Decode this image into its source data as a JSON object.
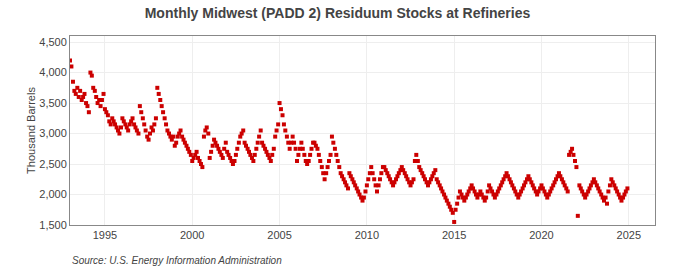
{
  "chart_data": {
    "type": "scatter",
    "title": "Monthly Midwest (PADD 2) Residuum Stocks at Refineries",
    "ylabel": "Thousand Barrels",
    "annotations": [
      "Source: U.S. Energy Information Administration"
    ],
    "color": "#cc0000",
    "marker": "square",
    "grid": true,
    "xlim": [
      1993.0,
      2026.5
    ],
    "xticks": [
      1995,
      2000,
      2005,
      2010,
      2015,
      2020,
      2025
    ],
    "ylim": [
      1500,
      4600
    ],
    "yticks": [
      {
        "value": 1500,
        "label": "1,500"
      },
      {
        "value": 2000,
        "label": "2,000"
      },
      {
        "value": 2500,
        "label": "2,500"
      },
      {
        "value": 3000,
        "label": "3,000"
      },
      {
        "value": 3500,
        "label": "3,500"
      },
      {
        "value": 4000,
        "label": "4,000"
      },
      {
        "value": 4500,
        "label": "4,500"
      }
    ],
    "x": [
      1993.0,
      1993.08,
      1993.17,
      1993.25,
      1993.33,
      1993.42,
      1993.5,
      1993.58,
      1993.67,
      1993.75,
      1993.83,
      1993.92,
      1994.0,
      1994.08,
      1994.17,
      1994.25,
      1994.33,
      1994.42,
      1994.5,
      1994.58,
      1994.67,
      1994.75,
      1994.83,
      1994.92,
      1995.0,
      1995.08,
      1995.17,
      1995.25,
      1995.33,
      1995.42,
      1995.5,
      1995.58,
      1995.67,
      1995.75,
      1995.83,
      1995.92,
      1996.0,
      1996.08,
      1996.17,
      1996.25,
      1996.33,
      1996.42,
      1996.5,
      1996.58,
      1996.67,
      1996.75,
      1996.83,
      1996.92,
      1997.0,
      1997.08,
      1997.17,
      1997.25,
      1997.33,
      1997.42,
      1997.5,
      1997.58,
      1997.67,
      1997.75,
      1997.83,
      1997.92,
      1998.0,
      1998.08,
      1998.17,
      1998.25,
      1998.33,
      1998.42,
      1998.5,
      1998.58,
      1998.67,
      1998.75,
      1998.83,
      1998.92,
      1999.0,
      1999.08,
      1999.17,
      1999.25,
      1999.33,
      1999.42,
      1999.5,
      1999.58,
      1999.67,
      1999.75,
      1999.83,
      1999.92,
      2000.0,
      2000.08,
      2000.17,
      2000.25,
      2000.33,
      2000.42,
      2000.5,
      2000.58,
      2000.67,
      2000.75,
      2000.83,
      2000.92,
      2001.0,
      2001.08,
      2001.17,
      2001.25,
      2001.33,
      2001.42,
      2001.5,
      2001.58,
      2001.67,
      2001.75,
      2001.83,
      2001.92,
      2002.0,
      2002.08,
      2002.17,
      2002.25,
      2002.33,
      2002.42,
      2002.5,
      2002.58,
      2002.67,
      2002.75,
      2002.83,
      2002.92,
      2003.0,
      2003.08,
      2003.17,
      2003.25,
      2003.33,
      2003.42,
      2003.5,
      2003.58,
      2003.67,
      2003.75,
      2003.83,
      2003.92,
      2004.0,
      2004.08,
      2004.17,
      2004.25,
      2004.33,
      2004.42,
      2004.5,
      2004.58,
      2004.67,
      2004.75,
      2004.83,
      2004.92,
      2005.0,
      2005.08,
      2005.17,
      2005.25,
      2005.33,
      2005.42,
      2005.5,
      2005.58,
      2005.67,
      2005.75,
      2005.83,
      2005.92,
      2006.0,
      2006.08,
      2006.17,
      2006.25,
      2006.33,
      2006.42,
      2006.5,
      2006.58,
      2006.67,
      2006.75,
      2006.83,
      2006.92,
      2007.0,
      2007.08,
      2007.17,
      2007.25,
      2007.33,
      2007.42,
      2007.5,
      2007.58,
      2007.67,
      2007.75,
      2007.83,
      2007.92,
      2008.0,
      2008.08,
      2008.17,
      2008.25,
      2008.33,
      2008.42,
      2008.5,
      2008.58,
      2008.67,
      2008.75,
      2008.83,
      2008.92,
      2009.0,
      2009.08,
      2009.17,
      2009.25,
      2009.33,
      2009.42,
      2009.5,
      2009.58,
      2009.67,
      2009.75,
      2009.83,
      2009.92,
      2010.0,
      2010.08,
      2010.17,
      2010.25,
      2010.33,
      2010.42,
      2010.5,
      2010.58,
      2010.67,
      2010.75,
      2010.83,
      2010.92,
      2011.0,
      2011.08,
      2011.17,
      2011.25,
      2011.33,
      2011.42,
      2011.5,
      2011.58,
      2011.67,
      2011.75,
      2011.83,
      2011.92,
      2012.0,
      2012.08,
      2012.17,
      2012.25,
      2012.33,
      2012.42,
      2012.5,
      2012.58,
      2012.67,
      2012.75,
      2012.83,
      2012.92,
      2013.0,
      2013.08,
      2013.17,
      2013.25,
      2013.33,
      2013.42,
      2013.5,
      2013.58,
      2013.67,
      2013.75,
      2013.83,
      2013.92,
      2014.0,
      2014.08,
      2014.17,
      2014.25,
      2014.33,
      2014.42,
      2014.5,
      2014.58,
      2014.67,
      2014.75,
      2014.83,
      2014.92,
      2015.0,
      2015.08,
      2015.17,
      2015.25,
      2015.33,
      2015.42,
      2015.5,
      2015.58,
      2015.67,
      2015.75,
      2015.83,
      2015.92,
      2016.0,
      2016.08,
      2016.17,
      2016.25,
      2016.33,
      2016.42,
      2016.5,
      2016.58,
      2016.67,
      2016.75,
      2016.83,
      2016.92,
      2017.0,
      2017.08,
      2017.17,
      2017.25,
      2017.33,
      2017.42,
      2017.5,
      2017.58,
      2017.67,
      2017.75,
      2017.83,
      2017.92,
      2018.0,
      2018.08,
      2018.17,
      2018.25,
      2018.33,
      2018.42,
      2018.5,
      2018.58,
      2018.67,
      2018.75,
      2018.83,
      2018.92,
      2019.0,
      2019.08,
      2019.17,
      2019.25,
      2019.33,
      2019.42,
      2019.5,
      2019.58,
      2019.67,
      2019.75,
      2019.83,
      2019.92,
      2020.0,
      2020.08,
      2020.17,
      2020.25,
      2020.33,
      2020.42,
      2020.5,
      2020.58,
      2020.67,
      2020.75,
      2020.83,
      2020.92,
      2021.0,
      2021.08,
      2021.17,
      2021.25,
      2021.33,
      2021.42,
      2021.5,
      2021.58,
      2021.67,
      2021.75,
      2021.83,
      2021.92,
      2022.0,
      2022.08,
      2022.17,
      2022.25,
      2022.33,
      2022.42,
      2022.5,
      2022.58,
      2022.67,
      2022.75,
      2022.83,
      2022.92,
      2023.0,
      2023.08,
      2023.17,
      2023.25,
      2023.33,
      2023.42,
      2023.5,
      2023.58,
      2023.67,
      2023.75,
      2023.83,
      2023.92,
      2024.0,
      2024.08,
      2024.17,
      2024.25,
      2024.33,
      2024.42,
      2024.5,
      2024.58,
      2024.67,
      2024.75,
      2024.83,
      2024.92
    ],
    "values": [
      4200,
      4100,
      3850,
      3700,
      3650,
      3750,
      3600,
      3700,
      3550,
      3600,
      3650,
      3500,
      3450,
      3350,
      4000,
      3950,
      3750,
      3700,
      3600,
      3500,
      3550,
      3450,
      3550,
      3650,
      3400,
      3350,
      3300,
      3200,
      3150,
      3250,
      3200,
      3150,
      3100,
      3050,
      3000,
      3100,
      3250,
      3200,
      3150,
      3100,
      3050,
      3150,
      3200,
      3250,
      3150,
      3100,
      3050,
      3000,
      3450,
      3350,
      3250,
      3150,
      3050,
      2950,
      2900,
      3000,
      3100,
      3050,
      3150,
      3250,
      3750,
      3650,
      3550,
      3450,
      3350,
      3250,
      3150,
      3050,
      3000,
      2950,
      2900,
      2950,
      2800,
      2850,
      2950,
      3000,
      3050,
      2950,
      2900,
      2850,
      2800,
      2750,
      2700,
      2650,
      2550,
      2600,
      2650,
      2700,
      2600,
      2550,
      2500,
      2450,
      2950,
      3050,
      3100,
      3000,
      2600,
      2700,
      2800,
      2900,
      2850,
      2800,
      2750,
      2700,
      2650,
      2600,
      2750,
      2850,
      2700,
      2650,
      2600,
      2550,
      2500,
      2550,
      2650,
      2750,
      2850,
      2950,
      3000,
      3050,
      2850,
      2800,
      2750,
      2700,
      2650,
      2600,
      2550,
      2650,
      2750,
      2850,
      2950,
      3050,
      2850,
      2800,
      2750,
      2700,
      2650,
      2600,
      2550,
      2650,
      2750,
      2950,
      3050,
      3150,
      3500,
      3400,
      3300,
      3150,
      3050,
      2950,
      2850,
      2750,
      2850,
      2950,
      2850,
      2750,
      2550,
      2650,
      2750,
      2850,
      2750,
      2650,
      2550,
      2500,
      2550,
      2650,
      2750,
      2850,
      2850,
      2800,
      2750,
      2650,
      2550,
      2450,
      2350,
      2250,
      2350,
      2450,
      2550,
      2650,
      2950,
      2850,
      2750,
      2650,
      2550,
      2450,
      2350,
      2300,
      2250,
      2200,
      2150,
      2100,
      2350,
      2300,
      2250,
      2200,
      2150,
      2100,
      2050,
      2000,
      1950,
      1900,
      1950,
      2050,
      2150,
      2250,
      2350,
      2450,
      2350,
      2250,
      2150,
      2050,
      2150,
      2250,
      2350,
      2450,
      2450,
      2400,
      2350,
      2300,
      2250,
      2200,
      2150,
      2200,
      2250,
      2300,
      2350,
      2400,
      2450,
      2400,
      2350,
      2300,
      2250,
      2200,
      2150,
      2200,
      2250,
      2550,
      2650,
      2550,
      2450,
      2400,
      2350,
      2300,
      2250,
      2200,
      2150,
      2200,
      2250,
      2300,
      2350,
      2400,
      2250,
      2200,
      2150,
      2100,
      2050,
      2000,
      1950,
      1900,
      1850,
      1800,
      1750,
      1700,
      1550,
      1750,
      1850,
      1950,
      2050,
      2000,
      1950,
      1900,
      1950,
      2000,
      2050,
      2100,
      2150,
      2100,
      2050,
      2000,
      1950,
      2000,
      2050,
      2000,
      1950,
      1900,
      1950,
      2050,
      2150,
      2100,
      2050,
      2000,
      1950,
      2000,
      2050,
      2100,
      2150,
      2200,
      2250,
      2300,
      2350,
      2300,
      2250,
      2200,
      2150,
      2100,
      2050,
      2000,
      1950,
      2000,
      2050,
      2100,
      2150,
      2200,
      2250,
      2300,
      2250,
      2200,
      2150,
      2100,
      2050,
      2000,
      2050,
      2100,
      2150,
      2100,
      2050,
      2000,
      1950,
      2000,
      2050,
      2100,
      2150,
      2200,
      2250,
      2300,
      2350,
      2300,
      2250,
      2200,
      2150,
      2100,
      2050,
      2650,
      2700,
      2750,
      2650,
      2550,
      2450,
      1650,
      2150,
      2100,
      2050,
      2000,
      1950,
      2000,
      2050,
      2100,
      2150,
      2200,
      2250,
      2200,
      2150,
      2100,
      2050,
      2000,
      1950,
      1900,
      1950,
      1850,
      2050,
      2150,
      2250,
      2200,
      2150,
      2100,
      2050,
      2000,
      1950,
      1900,
      1950,
      2000,
      2050,
      2100
    ]
  }
}
